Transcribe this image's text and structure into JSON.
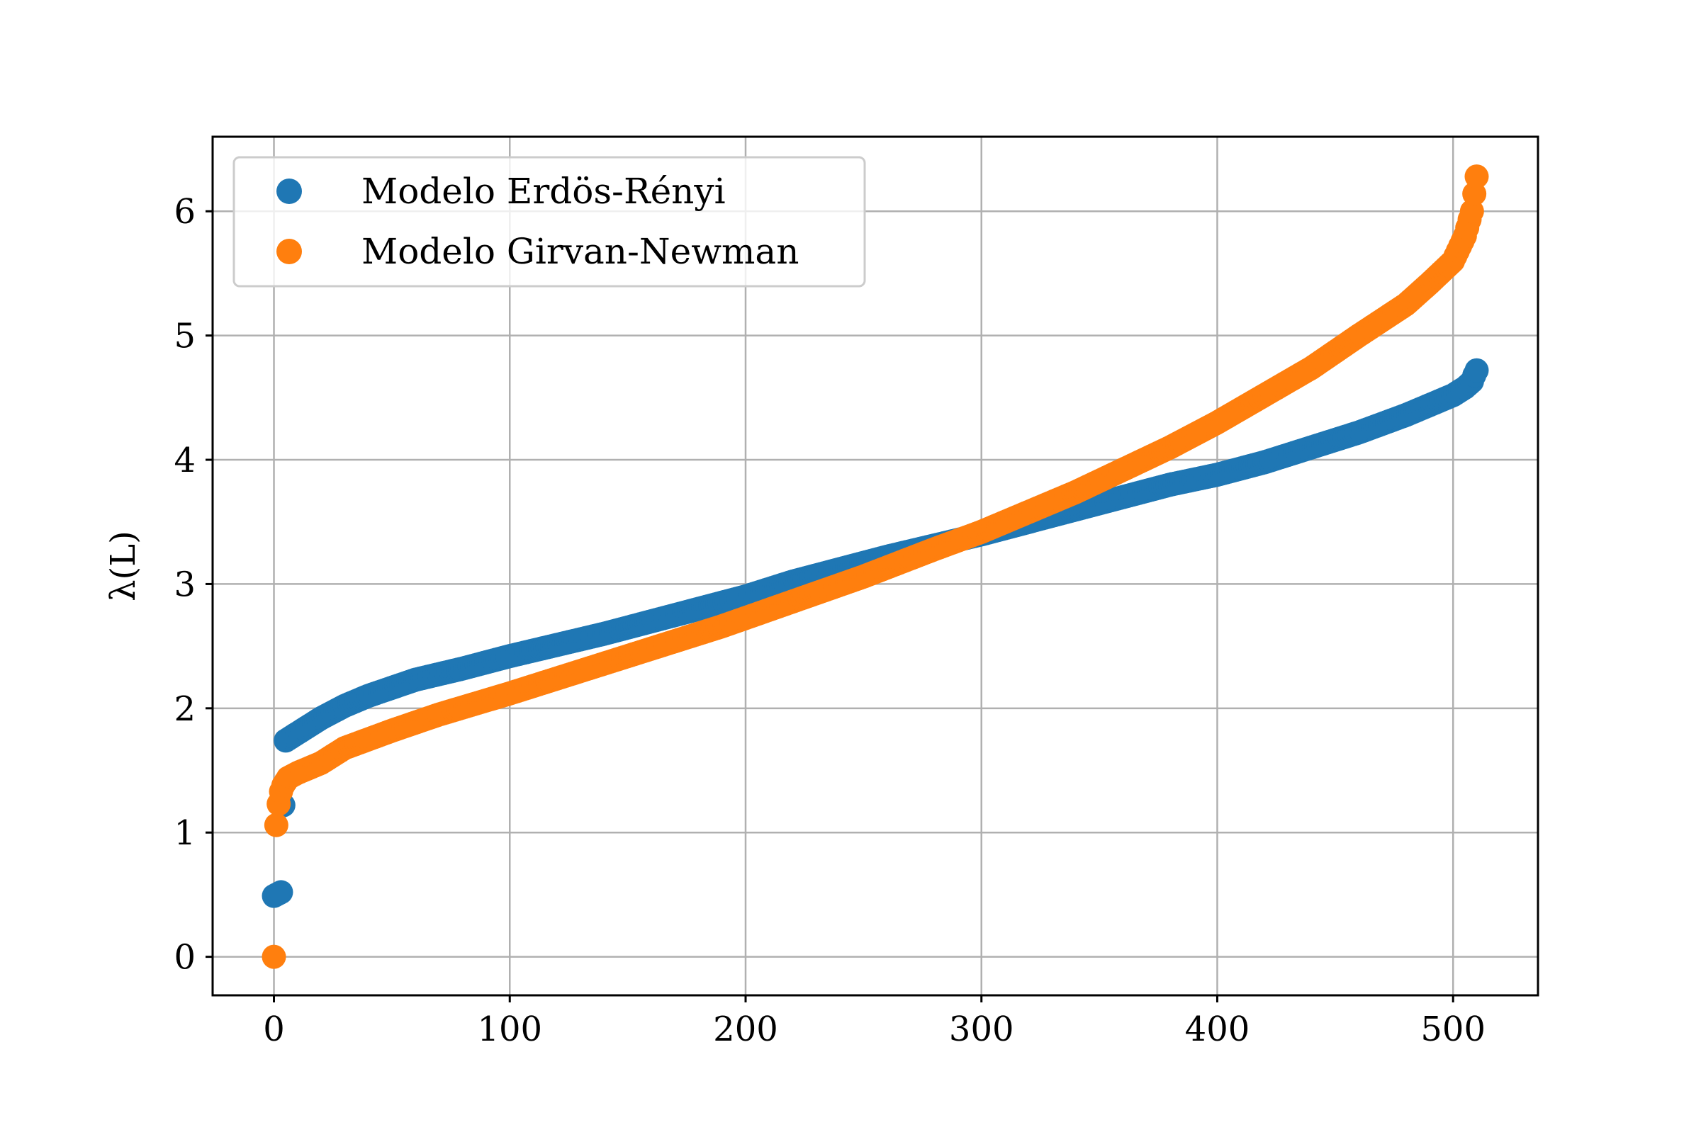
{
  "chart_data": {
    "type": "scatter",
    "title": "",
    "xlabel": "",
    "ylabel": "λ(L)",
    "xlim": [
      -26,
      536
    ],
    "ylim": [
      -0.31,
      6.6
    ],
    "xticks": [
      0,
      100,
      200,
      300,
      400,
      500
    ],
    "yticks": [
      0,
      1,
      2,
      3,
      4,
      5,
      6
    ],
    "grid": true,
    "legend_position": "upper-left",
    "series": [
      {
        "name": "Modelo Erdös-Rényi",
        "color": "#1f77b4",
        "x": [
          0,
          1,
          2,
          3,
          4,
          5,
          10,
          20,
          30,
          40,
          60,
          80,
          100,
          120,
          140,
          160,
          180,
          200,
          220,
          240,
          260,
          280,
          300,
          320,
          340,
          360,
          380,
          400,
          420,
          440,
          460,
          480,
          500,
          505,
          508,
          509,
          510
        ],
        "y": [
          0.49,
          0.5,
          0.51,
          0.52,
          1.22,
          1.74,
          1.8,
          1.92,
          2.02,
          2.1,
          2.23,
          2.32,
          2.42,
          2.51,
          2.6,
          2.7,
          2.8,
          2.9,
          3.02,
          3.12,
          3.22,
          3.31,
          3.4,
          3.5,
          3.6,
          3.7,
          3.8,
          3.88,
          3.98,
          4.1,
          4.22,
          4.36,
          4.52,
          4.58,
          4.63,
          4.68,
          4.72
        ]
      },
      {
        "name": "Modelo Girvan-Newman",
        "color": "#ff7f0e",
        "x": [
          0,
          1,
          2,
          3,
          4,
          6,
          10,
          20,
          30,
          50,
          70,
          100,
          130,
          160,
          190,
          220,
          250,
          280,
          300,
          320,
          340,
          360,
          380,
          400,
          420,
          440,
          460,
          480,
          490,
          500,
          505,
          508,
          510
        ],
        "y": [
          0.0,
          1.06,
          1.23,
          1.33,
          1.38,
          1.44,
          1.48,
          1.56,
          1.68,
          1.82,
          1.95,
          2.12,
          2.3,
          2.48,
          2.66,
          2.86,
          3.06,
          3.28,
          3.42,
          3.58,
          3.74,
          3.92,
          4.1,
          4.3,
          4.52,
          4.74,
          5.0,
          5.25,
          5.42,
          5.6,
          5.8,
          6.0,
          6.28
        ]
      }
    ]
  }
}
